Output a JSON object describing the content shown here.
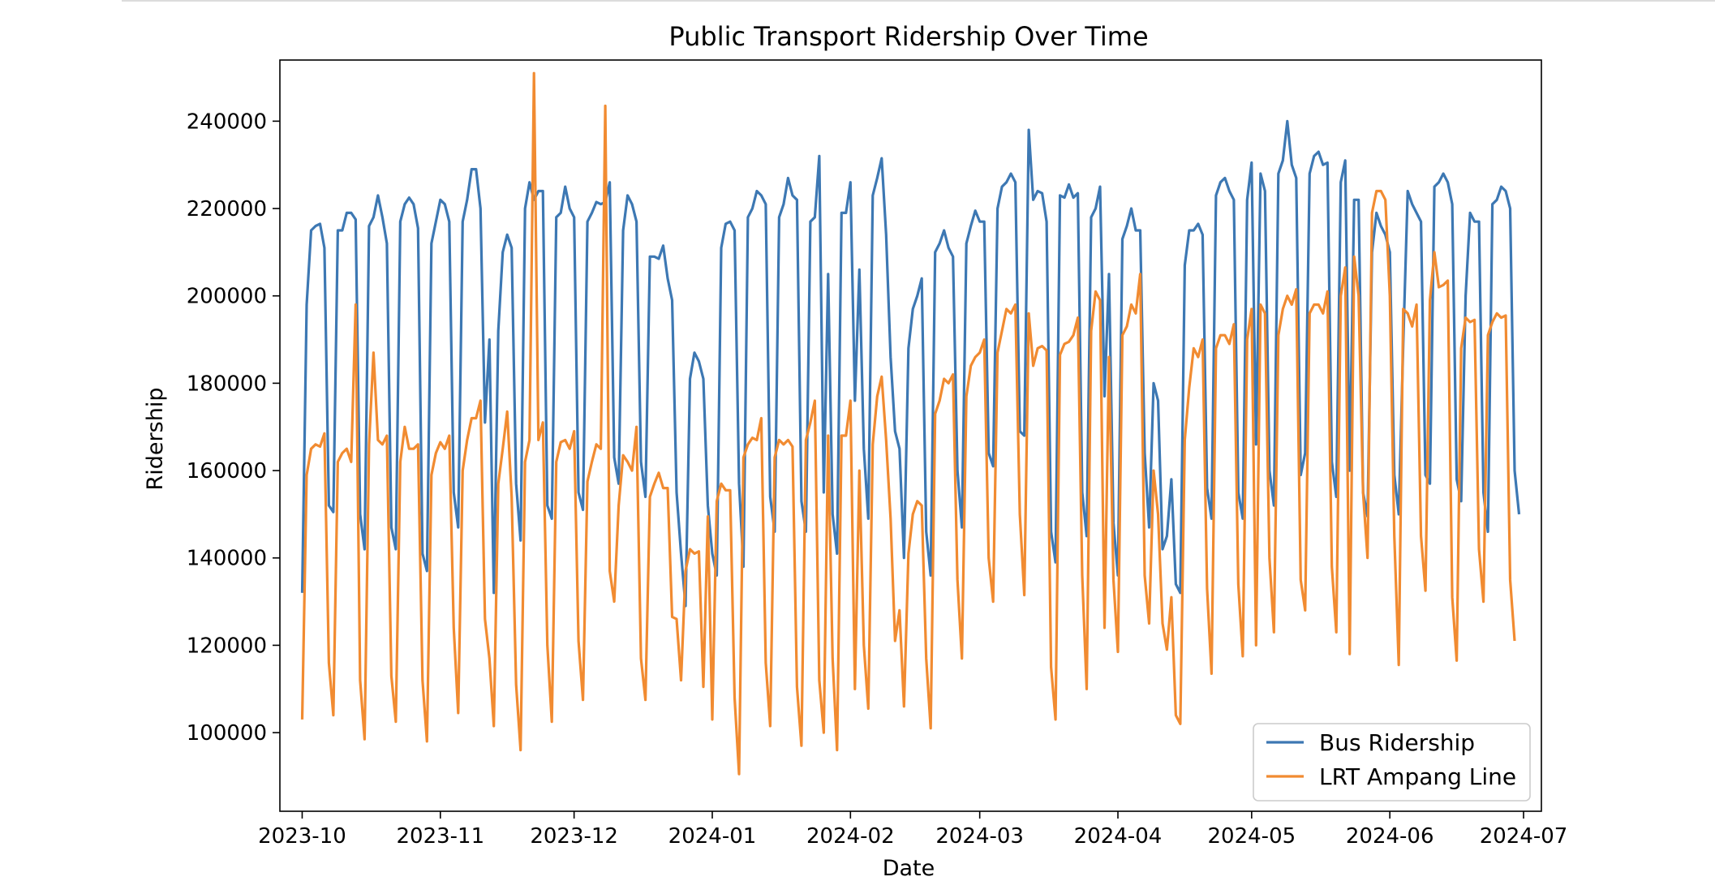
{
  "chart_data": {
    "type": "line",
    "title": "Public Transport Ridership Over Time",
    "xlabel": "Date",
    "ylabel": "Ridership",
    "xlim": [
      "2023-09-26",
      "2024-07-05"
    ],
    "ylim": [
      82000,
      254000
    ],
    "xticks": [
      "2023-10-01",
      "2023-11-01",
      "2023-12-01",
      "2024-01-01",
      "2024-02-01",
      "2024-03-01",
      "2024-04-01",
      "2024-05-01",
      "2024-06-01",
      "2024-07-01"
    ],
    "xtick_labels": [
      "2023-10",
      "2023-11",
      "2023-12",
      "2024-01",
      "2024-02",
      "2024-03",
      "2024-04",
      "2024-05",
      "2024-06",
      "2024-07"
    ],
    "yticks": [
      100000,
      120000,
      140000,
      160000,
      180000,
      200000,
      220000,
      240000
    ],
    "ytick_labels": [
      "100000",
      "120000",
      "140000",
      "160000",
      "180000",
      "200000",
      "220000",
      "240000"
    ],
    "grid": false,
    "legend_position": "lower-right",
    "x_start": "2023-10-01",
    "x_step": "1 day",
    "series": [
      {
        "name": "Bus Ridership",
        "color": "#3d78b3",
        "values": [
          132000,
          198000,
          215000,
          216000,
          216500,
          211000,
          152000,
          150500,
          215000,
          215000,
          219000,
          219000,
          217500,
          150000,
          142000,
          216000,
          218000,
          223000,
          218000,
          212000,
          147000,
          142000,
          217000,
          221000,
          222500,
          221000,
          215500,
          141000,
          137000,
          212000,
          217000,
          222000,
          221000,
          217000,
          155000,
          147000,
          217000,
          222000,
          229000,
          229000,
          220000,
          171000,
          190000,
          132000,
          192000,
          210000,
          214000,
          211000,
          157000,
          144000,
          220000,
          226000,
          222000,
          224000,
          224000,
          152000,
          149000,
          218000,
          219000,
          225000,
          220000,
          218000,
          155000,
          151000,
          217000,
          219000,
          221500,
          221000,
          221500,
          226000,
          163000,
          157000,
          215000,
          223000,
          221000,
          217000,
          162000,
          154000,
          209000,
          209000,
          208500,
          211500,
          204000,
          199000,
          155000,
          141000,
          129000,
          181000,
          187000,
          185000,
          181000,
          152000,
          141000,
          136000,
          211000,
          216500,
          217000,
          215000,
          157000,
          138000,
          218000,
          220000,
          224000,
          223000,
          221000,
          154000,
          146000,
          218000,
          221000,
          227000,
          223000,
          222000,
          153000,
          146000,
          217000,
          218000,
          232000,
          155000,
          205000,
          150000,
          141000,
          219000,
          219000,
          226000,
          176000,
          206000,
          165000,
          149000,
          223000,
          227000,
          231500,
          214000,
          186000,
          169000,
          165000,
          140000,
          188000,
          197000,
          200000,
          204000,
          146000,
          136000,
          210000,
          212000,
          215000,
          211000,
          209000,
          160000,
          147000,
          212000,
          216000,
          219500,
          217000,
          217000,
          164000,
          161000,
          220000,
          225000,
          226000,
          228000,
          226000,
          169000,
          168000,
          238000,
          222000,
          224000,
          223500,
          217000,
          146000,
          139000,
          223000,
          222500,
          225500,
          222500,
          223500,
          155000,
          145000,
          218000,
          220000,
          225000,
          177000,
          205000,
          148000,
          136000,
          213000,
          216000,
          220000,
          215000,
          215000,
          164000,
          147000,
          180000,
          176000,
          142000,
          145000,
          158000,
          134000,
          132000,
          207000,
          215000,
          215000,
          216500,
          214000,
          156000,
          149000,
          223000,
          226000,
          227000,
          224000,
          222000,
          155000,
          149000,
          222000,
          230500,
          166000,
          228000,
          224000,
          160000,
          152000,
          228000,
          231000,
          240000,
          230000,
          227000,
          159000,
          164000,
          228000,
          232000,
          233000,
          230000,
          230500,
          162000,
          154000,
          226000,
          231000,
          160000,
          222000,
          222000,
          155000,
          149500,
          210000,
          219000,
          216000,
          214000,
          210000,
          159000,
          150000,
          189000,
          224000,
          221000,
          219000,
          217000,
          159000,
          157000,
          225000,
          226000,
          228000,
          226000,
          221000,
          158000,
          153000,
          200000,
          219000,
          217000,
          217000,
          155000,
          146000,
          221000,
          222000,
          225000,
          224000,
          220000,
          160000,
          150000
        ]
      },
      {
        "name": "LRT Ampang Line",
        "color": "#f18b31",
        "values": [
          103000,
          159000,
          165000,
          166000,
          165500,
          168500,
          116000,
          104000,
          162000,
          164000,
          165000,
          162000,
          198000,
          112000,
          98500,
          166000,
          187000,
          167000,
          166000,
          168000,
          113000,
          102500,
          162000,
          170000,
          165000,
          165000,
          166000,
          112000,
          98000,
          159000,
          164000,
          166500,
          165000,
          168000,
          124000,
          104500,
          160000,
          167000,
          172000,
          172000,
          176000,
          126000,
          117000,
          101500,
          157000,
          165000,
          173500,
          154000,
          111000,
          96000,
          162000,
          167000,
          251000,
          167000,
          171000,
          120000,
          102500,
          162000,
          166500,
          167000,
          165000,
          169000,
          121000,
          107500,
          157500,
          162000,
          166000,
          165000,
          243500,
          137000,
          130000,
          152000,
          163500,
          162000,
          160000,
          170000,
          117000,
          107500,
          154000,
          157000,
          159500,
          156000,
          156000,
          126500,
          126000,
          112000,
          137000,
          142000,
          141000,
          141500,
          110500,
          149500,
          103000,
          153000,
          157000,
          155500,
          155500,
          108000,
          90500,
          163000,
          166000,
          167500,
          167000,
          172000,
          116000,
          101500,
          163000,
          167000,
          166000,
          167000,
          165500,
          110500,
          97000,
          167000,
          171000,
          176000,
          112000,
          100000,
          168000,
          117000,
          96000,
          168000,
          168000,
          176000,
          110000,
          160000,
          120000,
          105500,
          166000,
          177000,
          181500,
          167000,
          149000,
          121000,
          128000,
          106000,
          141000,
          150000,
          153000,
          152000,
          117000,
          101000,
          173000,
          176000,
          181000,
          180000,
          182000,
          135000,
          117000,
          177000,
          184000,
          186000,
          187000,
          190000,
          140000,
          130000,
          187000,
          192000,
          197000,
          196000,
          198000,
          150000,
          131500,
          196000,
          184000,
          188000,
          188500,
          187500,
          115000,
          103000,
          186500,
          189000,
          189500,
          191000,
          195000,
          136000,
          110000,
          192000,
          201000,
          199000,
          124000,
          186000,
          135000,
          118500,
          191000,
          193000,
          198000,
          196000,
          205000,
          136000,
          125000,
          160000,
          150000,
          125000,
          119000,
          131000,
          104000,
          102000,
          167000,
          179000,
          188000,
          186000,
          190000,
          133000,
          113500,
          188000,
          191000,
          191000,
          189000,
          193500,
          134000,
          117500,
          190000,
          197000,
          120000,
          198000,
          196000,
          140000,
          123000,
          191000,
          197000,
          200000,
          198000,
          201500,
          135000,
          128000,
          196000,
          198000,
          198000,
          196000,
          201000,
          138000,
          123000,
          200000,
          206500,
          118000,
          209000,
          200000,
          155000,
          140000,
          219000,
          224000,
          224000,
          222000,
          200000,
          145000,
          115500,
          197000,
          196000,
          193000,
          198000,
          145000,
          132500,
          199000,
          210000,
          202000,
          202500,
          203500,
          131000,
          116500,
          188000,
          195000,
          194000,
          194500,
          142000,
          130000,
          191000,
          194000,
          196000,
          195000,
          195500,
          135000,
          121000
        ]
      }
    ]
  }
}
